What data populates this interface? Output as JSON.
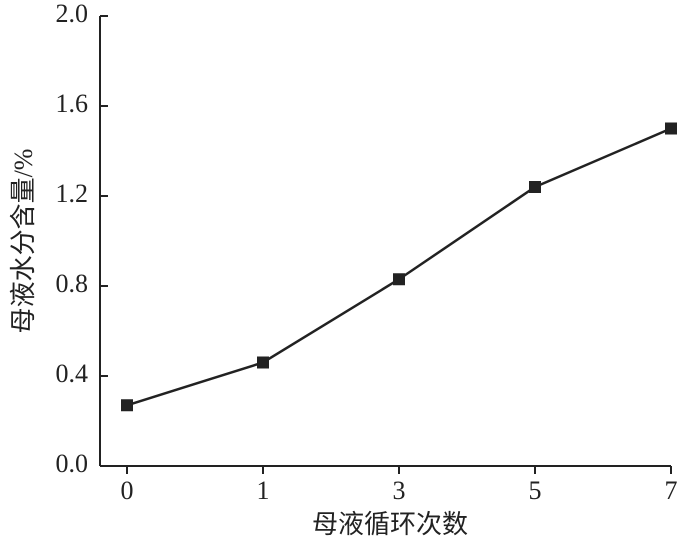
{
  "chart_data": {
    "type": "line",
    "x_label": "母液循环次数",
    "y_label": "母液水分含量/%",
    "categories": [
      "0",
      "1",
      "3",
      "5",
      "7"
    ],
    "series": [
      {
        "color": "#222222",
        "values": [
          0.27,
          0.46,
          0.83,
          1.24,
          1.5
        ]
      }
    ],
    "ylim": [
      0,
      2
    ],
    "yticks": [
      {
        "value": 0,
        "label": "0.0"
      },
      0.4,
      0.8,
      1.2,
      1.6,
      {
        "value": 2,
        "label": "2.0"
      }
    ]
  }
}
